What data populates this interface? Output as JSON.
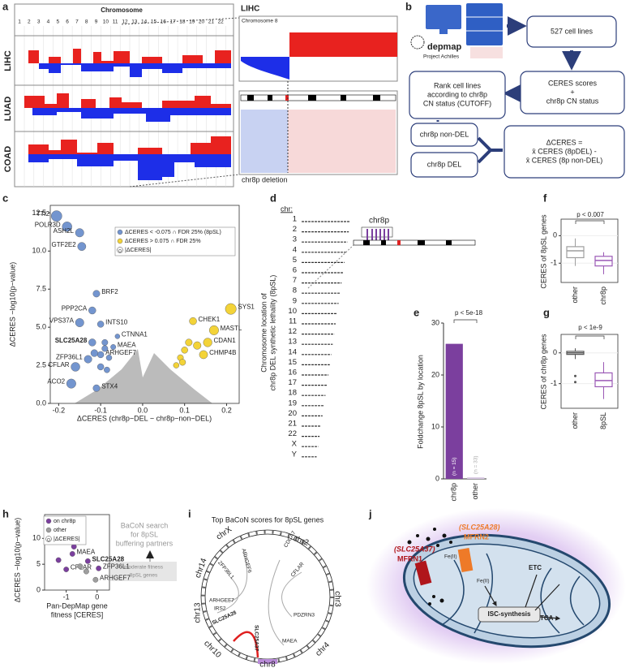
{
  "panels": {
    "a": {
      "label": "a",
      "header": "Chromosome",
      "chromosomes": [
        "1",
        "2",
        "3",
        "4",
        "5",
        "6",
        "7",
        "8",
        "9",
        "10",
        "11",
        "12",
        "13",
        "14",
        "15",
        "16",
        "17",
        "18",
        "19",
        "20",
        "21",
        "22"
      ],
      "rows": [
        "LIHC",
        "LUAD",
        "COAD"
      ],
      "zoom_title": "LIHC",
      "zoom_subtitle": "Chromosome 8",
      "caption": "chr8p deletion"
    },
    "b": {
      "label": "b",
      "logo": "depmap",
      "logo_sub": "Project Achilles",
      "nodes": [
        {
          "lines": [
            "527 cell lines"
          ]
        },
        {
          "lines": [
            "CERES scores",
            "+",
            "chr8p CN status"
          ]
        },
        {
          "lines": [
            "Rank cell lines",
            "according to chr8p",
            "CN status (CUTOFF)"
          ]
        },
        {
          "lines": [
            "chr8p non-DEL"
          ]
        },
        {
          "lines": [
            "chr8p DEL"
          ]
        },
        {
          "lines": [
            "ΔCERES =",
            "x̄ CERES (8pDEL) -",
            "x̄ CERES (8p non-DEL)"
          ]
        }
      ]
    },
    "d": {
      "label": "d",
      "header": "chr:",
      "chromosomes": [
        "1",
        "2",
        "3",
        "4",
        "5",
        "6",
        "7",
        "8",
        "9",
        "10",
        "11",
        "12",
        "13",
        "14",
        "15",
        "16",
        "17",
        "18",
        "19",
        "20",
        "21",
        "22",
        "X",
        "Y"
      ],
      "inset": "chr8p",
      "ylabel": [
        "Chromosome location of",
        "chr8p DEL synthetic lethality (8pSL)"
      ]
    },
    "i": {
      "label": "i",
      "title": "Top BaCoN scores for 8pSL genes",
      "chromosomes": [
        "chrX",
        "chr2",
        "chr3",
        "chr4",
        "chr8",
        "chr10",
        "chr13",
        "chr14"
      ],
      "genes": [
        "ARHGEF6",
        "ZFP36L1",
        "ARHGEF7",
        "IRS2",
        "SLC25A28",
        "SLC25A37",
        "CDCA7",
        "CFLAR",
        "PDZRN3",
        "MAEA"
      ]
    },
    "j": {
      "label": "j",
      "gene1": "(SLC25A37)",
      "protein1": "MFRN1",
      "gene2": "(SLC25A28)",
      "protein2": "MFRN2",
      "iron": "Fe(II)",
      "complex1": "ETC",
      "complex2": "TCA",
      "process": "ISC-synthesis"
    }
  },
  "chart_data": [
    {
      "panel": "c",
      "label": "c",
      "type": "scatter",
      "xlabel": "ΔCERES (chr8p−DEL − chr8p−non−DEL)",
      "ylabel": "ΔCERES −log10(p−value)",
      "xlim": [
        -0.22,
        0.23
      ],
      "ylim": [
        0,
        13
      ],
      "xticks": [
        -0.2,
        -0.1,
        {
          "value": 0,
          "label": "0.0"
        },
        0.1,
        0.2
      ],
      "yticks": [
        {
          "value": 0,
          "label": "0.0"
        },
        2.5,
        {
          "value": 5,
          "label": "5.0"
        },
        7.5,
        {
          "value": 10,
          "label": "10.0"
        },
        12.5
      ],
      "legend": [
        "ΔCERES < -0.075 ∩ FDR 25% (8pSL)",
        "ΔCERES > 0.075 ∩ FDR 25%",
        "|ΔCERES|"
      ],
      "legend_colors": [
        "#7395cf",
        "#f3d338"
      ],
      "points": [
        {
          "label": "TTI2",
          "x": -0.205,
          "y": 12.3,
          "color": "#7395cf"
        },
        {
          "label": "POLR3D",
          "x": -0.18,
          "y": 11.6,
          "color": "#7395cf"
        },
        {
          "label": "ASH2L",
          "x": -0.15,
          "y": 11.2,
          "color": "#7395cf"
        },
        {
          "label": "GTF2E2",
          "x": -0.145,
          "y": 10.3,
          "color": "#7395cf"
        },
        {
          "label": "BRF2",
          "x": -0.11,
          "y": 7.2,
          "color": "#7395cf"
        },
        {
          "label": "PPP2CA",
          "x": -0.12,
          "y": 6.1,
          "color": "#7395cf"
        },
        {
          "label": "VPS37A",
          "x": -0.15,
          "y": 5.3,
          "color": "#7395cf"
        },
        {
          "label": "INTS10",
          "x": -0.1,
          "y": 5.2,
          "color": "#7395cf"
        },
        {
          "label": "CTNNA1",
          "x": -0.06,
          "y": 4.4,
          "color": "#7395cf"
        },
        {
          "label": "MAEA",
          "x": -0.07,
          "y": 3.7,
          "color": "#7395cf"
        },
        {
          "label": "SLC25A28",
          "x": -0.12,
          "y": 4.0,
          "color": "#7395cf"
        },
        {
          "label": "ARHGEF7",
          "x": -0.1,
          "y": 3.2,
          "color": "#7395cf"
        },
        {
          "label": "ZFP36L1",
          "x": -0.13,
          "y": 2.9,
          "color": "#7395cf"
        },
        {
          "label": "CFLAR",
          "x": -0.16,
          "y": 2.4,
          "color": "#7395cf"
        },
        {
          "label": "ACO2",
          "x": -0.17,
          "y": 1.3,
          "color": "#7395cf"
        },
        {
          "label": "STX4",
          "x": -0.11,
          "y": 1.0,
          "color": "#7395cf"
        },
        {
          "label": null,
          "x": -0.09,
          "y": 4.0,
          "color": "#7395cf"
        },
        {
          "label": null,
          "x": -0.08,
          "y": 3.0,
          "color": "#7395cf"
        },
        {
          "label": null,
          "x": -0.1,
          "y": 2.4,
          "color": "#7395cf"
        },
        {
          "label": null,
          "x": -0.09,
          "y": 3.6,
          "color": "#7395cf"
        },
        {
          "label": null,
          "x": -0.115,
          "y": 3.3,
          "color": "#7395cf"
        },
        {
          "label": null,
          "x": -0.085,
          "y": 2.2,
          "color": "#7395cf"
        },
        {
          "label": "SYS1",
          "x": 0.21,
          "y": 6.2,
          "color": "#f3d338"
        },
        {
          "label": "CHEK1",
          "x": 0.12,
          "y": 5.4,
          "color": "#f3d338"
        },
        {
          "label": "MASTL",
          "x": 0.17,
          "y": 4.8,
          "color": "#f3d338"
        },
        {
          "label": "CDAN1",
          "x": 0.155,
          "y": 4.0,
          "color": "#f3d338"
        },
        {
          "label": "CHMP4B",
          "x": 0.145,
          "y": 3.2,
          "color": "#f3d338"
        },
        {
          "label": null,
          "x": 0.09,
          "y": 3.0,
          "color": "#f3d338"
        },
        {
          "label": null,
          "x": 0.1,
          "y": 3.5,
          "color": "#f3d338"
        },
        {
          "label": null,
          "x": 0.08,
          "y": 2.5,
          "color": "#f3d338"
        },
        {
          "label": null,
          "x": 0.11,
          "y": 4.0,
          "color": "#f3d338"
        },
        {
          "label": null,
          "x": 0.095,
          "y": 2.7,
          "color": "#f3d338"
        },
        {
          "label": null,
          "x": 0.13,
          "y": 3.8,
          "color": "#f3d338"
        }
      ]
    },
    {
      "panel": "e",
      "label": "e",
      "type": "bar",
      "categories": [
        "chr8p",
        "other"
      ],
      "values": [
        26,
        0.3
      ],
      "colors": [
        "#7b3f9e",
        "#d8c9e3"
      ],
      "annotations": [
        "(n = 15)",
        "(n = 33)"
      ],
      "ylim": [
        0,
        30
      ],
      "yticks": [
        0,
        10,
        20,
        30
      ],
      "ylabel": "Foldchange 8pSL by location",
      "pvalue": "p < 5e-18"
    },
    {
      "panel": "f",
      "label": "f",
      "type": "box",
      "categories": [
        "other",
        "chr8p"
      ],
      "colors": [
        "#9e9e9e",
        "#9b59b6"
      ],
      "boxes": [
        {
          "low": -1.1,
          "q1": -0.8,
          "median": -0.55,
          "q3": -0.4,
          "high": -0.1,
          "outliers": []
        },
        {
          "low": -1.4,
          "q1": -1.1,
          "median": -0.9,
          "q3": -0.75,
          "high": -0.6,
          "outliers": []
        }
      ],
      "ylim": [
        -1.7,
        0.6
      ],
      "yticks": [
        -1,
        0
      ],
      "ylabel": "CERES of 8pSL genes",
      "pvalue": "p < 0.007"
    },
    {
      "panel": "g",
      "label": "g",
      "type": "box",
      "categories": [
        "other",
        "8pSL"
      ],
      "colors": [
        "#555555",
        "#9b59b6"
      ],
      "boxes": [
        {
          "low": -0.2,
          "q1": -0.05,
          "median": 0.0,
          "q3": 0.05,
          "high": 0.15,
          "outliers": [
            -0.75,
            -0.95
          ]
        },
        {
          "low": -1.5,
          "q1": -1.1,
          "median": -0.9,
          "q3": -0.65,
          "high": -0.3,
          "outliers": []
        }
      ],
      "ylim": [
        -1.8,
        0.6
      ],
      "yticks": [
        -1,
        0
      ],
      "ylabel": "CERES of chr8p genes",
      "pvalue": "p < 1e-9"
    },
    {
      "panel": "h",
      "label": "h",
      "type": "scatter",
      "xlabel": [
        "Pan-DepMap gene",
        "fitness [CERES]"
      ],
      "ylabel": "ΔCERES −log10(p−value)",
      "xlim": [
        -1.7,
        0.4
      ],
      "ylim": [
        0,
        14.6
      ],
      "xticks": [
        -1,
        0
      ],
      "yticks": [
        0,
        5,
        10
      ],
      "legend": [
        "on chr8p",
        "other",
        "|ΔCERES|"
      ],
      "legend_colors": [
        "#7b3f9e",
        "#9e9e9e"
      ],
      "annotations": [
        [
          "BaCoN search",
          "for 8pSL",
          "buffering partners"
        ],
        [
          "moderate fitness",
          "8pSL genes"
        ]
      ],
      "points": [
        {
          "label": null,
          "x": -0.9,
          "y": 12.1,
          "color": "#7b3f9e"
        },
        {
          "label": null,
          "x": -0.6,
          "y": 12.6,
          "color": "#7b3f9e"
        },
        {
          "label": null,
          "x": -1.1,
          "y": 9.5,
          "color": "#7b3f9e"
        },
        {
          "label": null,
          "x": -0.75,
          "y": 8.4,
          "color": "#7b3f9e"
        },
        {
          "label": "MAEA",
          "x": -0.8,
          "y": 7.0,
          "color": "#7b3f9e"
        },
        {
          "label": null,
          "x": -1.25,
          "y": 5.8,
          "color": "#7b3f9e"
        },
        {
          "label": "CFLAR",
          "x": -1.0,
          "y": 4.0,
          "color": "#7b3f9e"
        },
        {
          "label": "SLC25A28",
          "x": -0.3,
          "y": 5.6,
          "color": "#7b3f9e"
        },
        {
          "label": null,
          "x": -0.35,
          "y": 3.6,
          "color": "#9e9e9e"
        },
        {
          "label": null,
          "x": -0.55,
          "y": 4.6,
          "color": "#9e9e9e"
        },
        {
          "label": "ZFP36L1",
          "x": 0.05,
          "y": 4.2,
          "color": "#7b3f9e"
        },
        {
          "label": "ARHGEF7",
          "x": -0.05,
          "y": 2.0,
          "color": "#9e9e9e"
        }
      ]
    }
  ]
}
